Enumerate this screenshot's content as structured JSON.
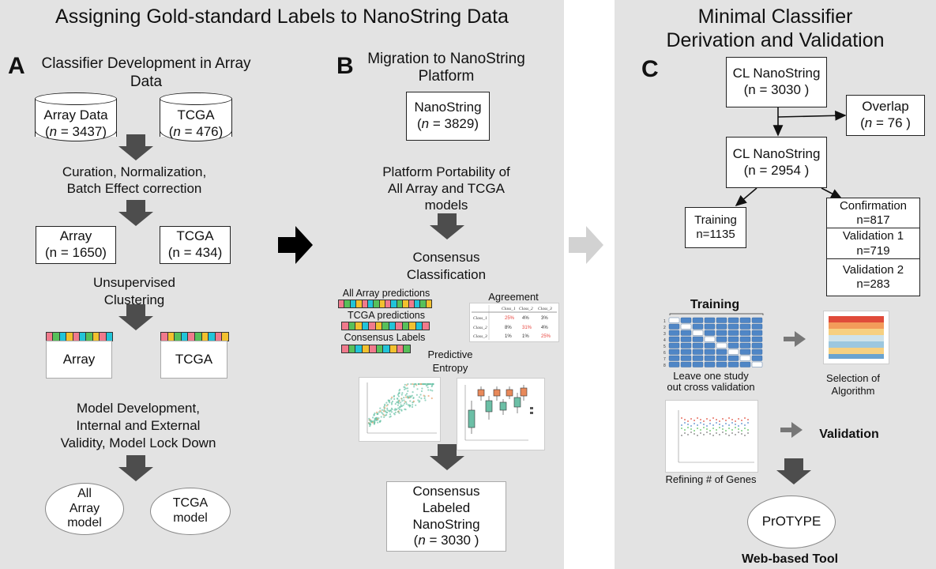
{
  "colors": {
    "panel": "#e3e3e3",
    "arrow": "#4d4d4d",
    "arrow_light": "#d2d2d2",
    "pink": "#f07a8c",
    "green": "#57c05a",
    "cyan": "#22c4d8",
    "yellow": "#f2c12e",
    "orange": "#e8895a",
    "teal": "#6cbfa6",
    "blue": "#4f86c6"
  },
  "left_title": "Assigning Gold-standard Labels to NanoString Data",
  "right_title_1": "Minimal Classifier",
  "right_title_2": "Derivation and Validation",
  "panelA": {
    "letter": "A",
    "heading_1": "Classifier Development in Array",
    "heading_2": "Data",
    "array_data": {
      "name": "Array Data",
      "n_prefix": "(",
      "n_var": "n",
      "n_suffix": " = 3437)"
    },
    "tcga_data": {
      "name": "TCGA",
      "n_prefix": "(",
      "n_var": "n",
      "n_suffix": " = 476)"
    },
    "curation_1": "Curation, Normalization,",
    "curation_2": "Batch Effect correction",
    "array_box": {
      "name": "Array",
      "n": "(n = 1650)"
    },
    "tcga_box": {
      "name": "TCGA",
      "n": "(n = 434)"
    },
    "unsup_1": "Unsupervised",
    "unsup_2": "Clustering",
    "array_card": "Array",
    "tcga_card": "TCGA",
    "model_1": "Model Development,",
    "model_2": "Internal and External",
    "model_3": "Validity, Model Lock Down",
    "array_model": [
      "All",
      "Array",
      "model"
    ],
    "tcga_model": [
      "TCGA",
      "model"
    ],
    "strip_array": [
      "pink",
      "green",
      "cyan",
      "yellow",
      "pink",
      "cyan",
      "green",
      "yellow",
      "pink",
      "cyan"
    ],
    "strip_tcga": [
      "pink",
      "yellow",
      "green",
      "cyan",
      "pink",
      "green",
      "yellow",
      "cyan",
      "pink",
      "yellow"
    ]
  },
  "panelB": {
    "letter": "B",
    "heading_1": "Migration to NanoString",
    "heading_2": "Platform",
    "nano": {
      "name": "NanoString",
      "n_prefix": "(",
      "n_var": "n",
      "n_suffix": " = 3829)"
    },
    "port_1": "Platform Portability of",
    "port_2": "All Array and TCGA",
    "port_3": "models",
    "cons_1": "Consensus",
    "cons_2": "Classification",
    "all_array_pred": "All Array predictions",
    "tcga_pred": "TCGA predictions",
    "cons_labels": "Consensus Labels",
    "agreement": "Agreement",
    "pred_1": "Predictive",
    "pred_2": "Entropy",
    "final": {
      "l1": "Consensus",
      "l2": "Labeled",
      "l3": "NanoString",
      "n_prefix": "(",
      "n_var": "n",
      "n_suffix": " = 3030 )"
    },
    "strip_all": [
      "pink",
      "green",
      "cyan",
      "yellow",
      "pink",
      "cyan",
      "green",
      "yellow",
      "pink",
      "cyan",
      "green",
      "yellow",
      "pink",
      "cyan",
      "green",
      "yellow"
    ],
    "strip_tcga": [
      "pink",
      "green",
      "yellow",
      "cyan",
      "pink",
      "yellow",
      "green",
      "cyan",
      "pink",
      "green",
      "yellow",
      "cyan",
      "pink"
    ],
    "strip_cons": [
      "pink",
      "green",
      "cyan",
      "yellow",
      "pink",
      "green",
      "cyan",
      "yellow",
      "pink",
      "green"
    ]
  },
  "panelC": {
    "letter": "C",
    "cl1": {
      "name": "CL NanoString",
      "n": "(n = 3030 )"
    },
    "overlap": {
      "name": "Overlap",
      "n_prefix": "(",
      "n_var": "n",
      "n_suffix": " = 76 )"
    },
    "cl2": {
      "name": "CL NanoString",
      "n": "(n = 2954 )"
    },
    "training_box": {
      "name": "Training",
      "n": "n=1135"
    },
    "confirmation": {
      "name": "Confirmation",
      "n": "n=817"
    },
    "validation1": {
      "name": "Validation 1",
      "n": "n=719"
    },
    "validation2": {
      "name": "Validation 2",
      "n": "n=283"
    },
    "training_label": "Training",
    "loso_1": "Leave one study",
    "loso_2": "out cross validation",
    "selection_1": "Selection of",
    "selection_2": "Algorithm",
    "refining": "Refining # of Genes",
    "validation_label": "Validation",
    "protype": "PrOTYPE",
    "web_tool": "Web-based Tool"
  }
}
